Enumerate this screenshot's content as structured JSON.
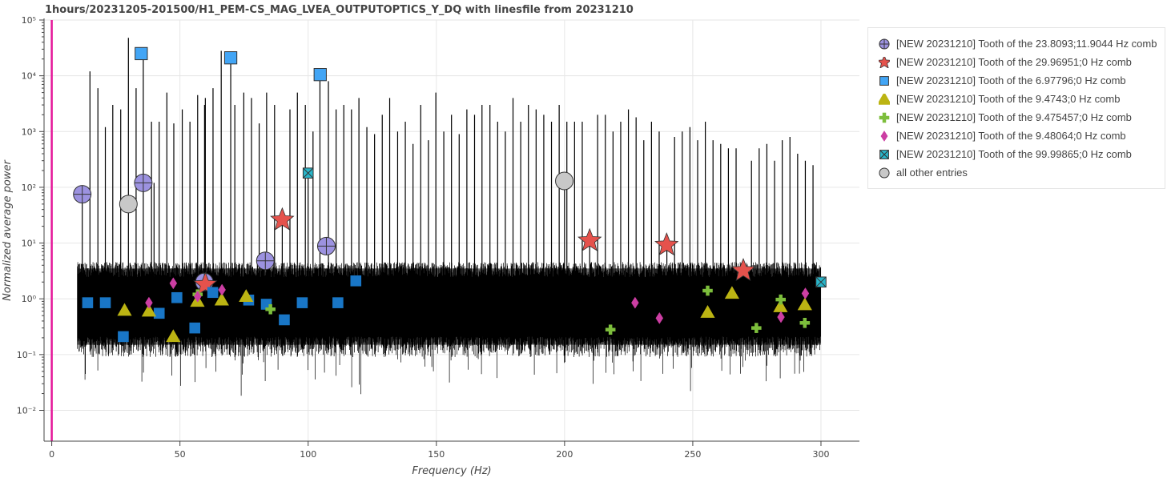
{
  "chart_data": {
    "type": "scatter",
    "title": "1hours/20231205-201500/H1_PEM-CS_MAG_LVEA_OUTPUTOPTICS_Y_DQ with linesfile from 20231210",
    "xlabel": "Frequency (Hz)",
    "ylabel": "Normalized average power",
    "xlim": [
      -3,
      315
    ],
    "ylim": [
      0.0028,
      100000
    ],
    "yscale": "log",
    "x_ticks": [
      0,
      50,
      100,
      150,
      200,
      250,
      300
    ],
    "x_tick_labels": [
      "0",
      "50",
      "100",
      "150",
      "200",
      "250",
      "300"
    ],
    "y_ticks": [
      0.01,
      0.1,
      1,
      10,
      100,
      1000,
      10000,
      100000
    ],
    "y_tick_labels": [
      "10⁻²",
      "10⁻¹",
      "10⁰",
      "10¹",
      "10²",
      "10³",
      "10⁴",
      "10⁵"
    ],
    "grid": true,
    "legend_position": "outside-right",
    "vertical_marker": {
      "x": 0,
      "color": "#e5179a"
    },
    "spectrum": {
      "x_range": [
        10,
        300
      ],
      "noise_band": [
        0.15,
        3.5
      ],
      "color": "#000000",
      "peaks": [
        [
          11.9,
          75
        ],
        [
          14.9,
          12000
        ],
        [
          18,
          6000
        ],
        [
          20.9,
          1200
        ],
        [
          23.8,
          3000
        ],
        [
          26.9,
          2500
        ],
        [
          29.9,
          48000
        ],
        [
          32.9,
          6000
        ],
        [
          35.7,
          25000
        ],
        [
          38.9,
          1500
        ],
        [
          39.9,
          120
        ],
        [
          41.9,
          1500
        ],
        [
          44.9,
          5000
        ],
        [
          47.6,
          1400
        ],
        [
          50.9,
          2500
        ],
        [
          53.9,
          1500
        ],
        [
          56.9,
          4500
        ],
        [
          59.6,
          3000
        ],
        [
          59.9,
          4000
        ],
        [
          62.9,
          6000
        ],
        [
          66.1,
          28000
        ],
        [
          69.8,
          21000
        ],
        [
          71.4,
          3000
        ],
        [
          74.9,
          5000
        ],
        [
          77.9,
          4000
        ],
        [
          80.9,
          1400
        ],
        [
          83.8,
          5000
        ],
        [
          86.9,
          3000
        ],
        [
          89.9,
          25
        ],
        [
          92.9,
          2500
        ],
        [
          95.8,
          5000
        ],
        [
          98.9,
          3000
        ],
        [
          99.99,
          180
        ],
        [
          101.9,
          1000
        ],
        [
          104.6,
          10000
        ],
        [
          107.9,
          8000
        ],
        [
          110.9,
          2500
        ],
        [
          113.9,
          3000
        ],
        [
          116.9,
          2500
        ],
        [
          119.8,
          4000
        ],
        [
          122.9,
          1200
        ],
        [
          125.9,
          900
        ],
        [
          128.9,
          2000
        ],
        [
          131.8,
          4000
        ],
        [
          134.9,
          1000
        ],
        [
          137.9,
          1500
        ],
        [
          140.9,
          600
        ],
        [
          143.9,
          3000
        ],
        [
          146.9,
          700
        ],
        [
          149.8,
          5000
        ],
        [
          152.9,
          1000
        ],
        [
          155.9,
          2000
        ],
        [
          158.9,
          900
        ],
        [
          161.9,
          2500
        ],
        [
          164.9,
          2000
        ],
        [
          167.8,
          3000
        ],
        [
          170.9,
          3000
        ],
        [
          173.9,
          1500
        ],
        [
          176.9,
          1000
        ],
        [
          179.9,
          4000
        ],
        [
          182.9,
          1500
        ],
        [
          185.9,
          3000
        ],
        [
          188.9,
          2500
        ],
        [
          191.9,
          2000
        ],
        [
          194.9,
          1500
        ],
        [
          197.9,
          3000
        ],
        [
          199.99,
          130
        ],
        [
          200.9,
          1500
        ],
        [
          203.9,
          1500
        ],
        [
          206.9,
          1500
        ],
        [
          209.8,
          12
        ],
        [
          212.9,
          2000
        ],
        [
          215.9,
          2000
        ],
        [
          218.9,
          1000
        ],
        [
          221.9,
          1500
        ],
        [
          224.9,
          2500
        ],
        [
          227.9,
          1800
        ],
        [
          230.9,
          700
        ],
        [
          233.9,
          1500
        ],
        [
          236.9,
          1000
        ],
        [
          239.9,
          9
        ],
        [
          242.9,
          800
        ],
        [
          245.9,
          1000
        ],
        [
          248.9,
          1200
        ],
        [
          251.9,
          700
        ],
        [
          254.9,
          1500
        ],
        [
          257.9,
          700
        ],
        [
          260.9,
          600
        ],
        [
          263.9,
          500
        ],
        [
          266.9,
          500
        ],
        [
          269.9,
          3
        ],
        [
          272.9,
          300
        ],
        [
          275.9,
          500
        ],
        [
          278.9,
          600
        ],
        [
          281.9,
          300
        ],
        [
          284.9,
          700
        ],
        [
          287.9,
          800
        ],
        [
          290.9,
          400
        ],
        [
          293.9,
          300
        ],
        [
          296.9,
          250
        ]
      ]
    },
    "series": [
      {
        "name": "[NEW 20231210] Tooth of the 23.8093;11.9044 Hz comb",
        "marker": "circle_cross",
        "color": "#9c92e0",
        "x": [
          11.9,
          35.7,
          59.5,
          83.3,
          107.1
        ],
        "y": [
          75,
          120,
          2,
          4.8,
          8.8
        ]
      },
      {
        "name": "[NEW 20231210] Tooth of the 29.96951;0 Hz comb",
        "marker": "star",
        "color": "#e5524c",
        "x": [
          59.9,
          89.9,
          209.8,
          239.8,
          269.7
        ],
        "y": [
          1.8,
          26,
          11,
          9.2,
          3.2
        ]
      },
      {
        "name": "[NEW 20231210] Tooth of the 6.97796;0 Hz comb",
        "marker": "square",
        "color": "#1976c6",
        "x": [
          14,
          20.9,
          27.9,
          34.9,
          41.9,
          48.8,
          55.8,
          62.8,
          69.8,
          76.8,
          83.7,
          90.7,
          97.7,
          104.7,
          111.6,
          118.6
        ],
        "y": [
          0.85,
          0.85,
          0.21,
          25000,
          0.55,
          1.05,
          0.3,
          1.3,
          21000,
          0.95,
          0.8,
          0.42,
          0.85,
          10500,
          0.85,
          2.1
        ]
      },
      {
        "name": "[NEW 20231210] Tooth of the 9.4743;0 Hz comb",
        "marker": "triangle",
        "color": "#bcb413",
        "x": [
          28.4,
          37.9,
          47.4,
          56.8,
          66.3,
          75.8,
          255.8,
          265.3,
          284.2,
          293.7
        ],
        "y": [
          0.62,
          0.6,
          0.21,
          0.9,
          0.95,
          1.1,
          0.57,
          1.25,
          0.72,
          0.78
        ]
      },
      {
        "name": "[NEW 20231210] Tooth of the 9.475457;0 Hz comb",
        "marker": "cross",
        "color": "#7dbe3c",
        "x": [
          56.9,
          85.3,
          217.9,
          255.8,
          274.8,
          284.3,
          293.7
        ],
        "y": [
          1.2,
          0.65,
          0.28,
          1.4,
          0.3,
          0.97,
          0.37
        ]
      },
      {
        "name": "[NEW 20231210] Tooth of the 9.48064;0 Hz comb",
        "marker": "diamond",
        "color": "#cc3ea3",
        "x": [
          37.9,
          47.4,
          56.9,
          66.4,
          227.5,
          237,
          284.4,
          293.9
        ],
        "y": [
          0.85,
          1.9,
          1.1,
          1.45,
          0.85,
          0.45,
          0.47,
          1.25
        ]
      },
      {
        "name": "[NEW 20231210] Tooth of the 99.99865;0 Hz comb",
        "marker": "square_x",
        "color": "#27b5c9",
        "x": [
          100,
          200,
          300
        ],
        "y": [
          180,
          130,
          2
        ]
      },
      {
        "name": "all other entries",
        "marker": "circle",
        "color": "#c8c8c8",
        "x": [
          29.9,
          199.9
        ],
        "y": [
          50,
          130
        ]
      }
    ]
  }
}
